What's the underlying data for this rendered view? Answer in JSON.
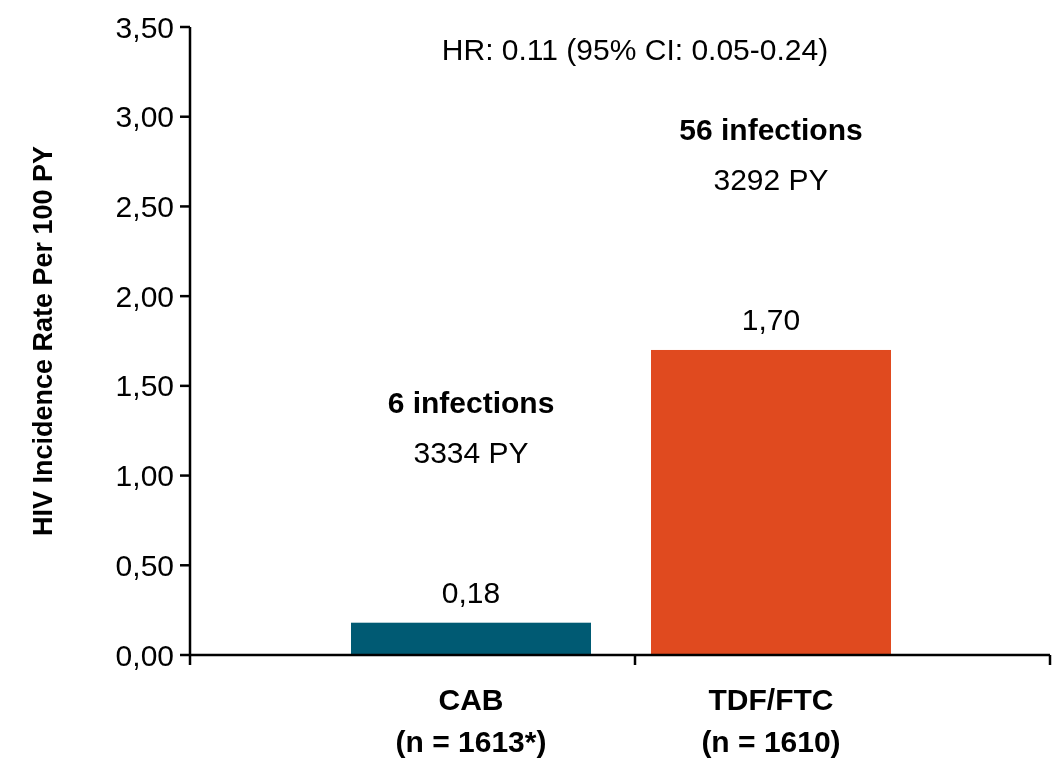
{
  "chart_data": {
    "type": "bar",
    "ylabel": "HIV Incidence Rate Per 100 PY",
    "categories": [
      "CAB\n(n = 1613*)",
      "TDF/FTC\n(n = 1610)"
    ],
    "values": [
      0.18,
      1.7
    ],
    "colors": [
      "#005a73",
      "#e04a1f"
    ],
    "value_labels": [
      "0,18",
      "1,70"
    ],
    "ylim": [
      0,
      3.5
    ],
    "yticks": [
      {
        "value": 0,
        "label": "0,00"
      },
      {
        "value": 0.5,
        "label": "0,50"
      },
      {
        "value": 1,
        "label": "1,00"
      },
      {
        "value": 1.5,
        "label": "1,50"
      },
      {
        "value": 2,
        "label": "2,00"
      },
      {
        "value": 2.5,
        "label": "2,50"
      },
      {
        "value": 3,
        "label": "3,00"
      },
      {
        "value": 3.5,
        "label": "3,50"
      }
    ],
    "grid": false,
    "annotations": [
      "HR: 0.11 (95% CI: 0.05-0.24)",
      "6 infections\n3334 PY",
      "56 infections\n3292 PY"
    ]
  }
}
